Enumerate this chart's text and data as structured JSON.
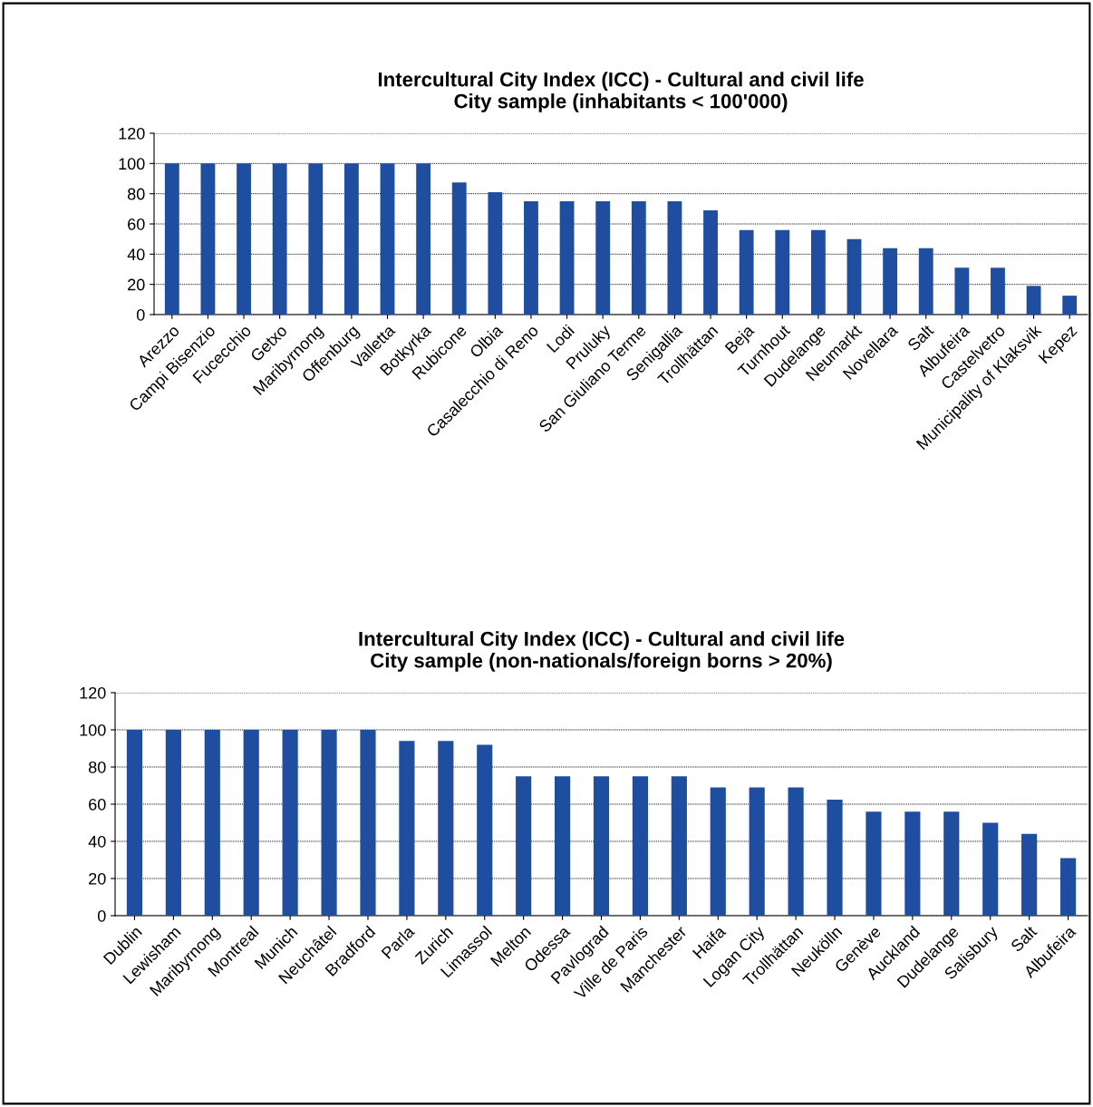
{
  "chart_data": [
    {
      "type": "bar",
      "title": "Intercultural City Index (ICC) - Cultural and civil life\nCity sample (inhabitants < 100'000)",
      "categories": [
        "Arezzo",
        "Campi Bisenzio",
        "Fucecchio",
        "Getxo",
        "Maribyrnong",
        "Offenburg",
        "Valletta",
        "Botkyrka",
        "Rubicone",
        "Olbia",
        "Casalecchio di Reno",
        "Lodi",
        "Pruluky",
        "San Giuliano Terme",
        "Senigallia",
        "Trollhättan",
        "Beja",
        "Turnhout",
        "Dudelange",
        "Neumarkt",
        "Novellara",
        "Salt",
        "Albufeira",
        "Castelvetro",
        "Municipality of Klaksvik",
        "Kepez"
      ],
      "values": [
        100,
        100,
        100,
        100,
        100,
        100,
        100,
        100,
        87.5,
        81,
        75,
        75,
        75,
        75,
        75,
        69,
        56,
        56,
        56,
        50,
        44,
        44,
        31,
        31,
        19,
        12.5
      ],
      "color": "#1f4ea0",
      "ylim": [
        0,
        120
      ],
      "yticks": [
        0,
        20,
        40,
        60,
        80,
        100,
        120
      ],
      "grid": "y",
      "legend": false
    },
    {
      "type": "bar",
      "title": "Intercultural City Index (ICC) - Cultural and civil life\nCity sample (non-nationals/foreign borns > 20%)",
      "categories": [
        "Dublin",
        "Lewisham",
        "Maribyrnong",
        "Montreal",
        "Munich",
        "Neuchâtel",
        "Bradford",
        "Parla",
        "Zurich",
        "Limassol",
        "Melton",
        "Odessa",
        "Pavlograd",
        "Ville de Paris",
        "Manchester",
        "Haifa",
        "Logan City",
        "Trollhättan",
        "Neukölln",
        "Genève",
        "Auckland",
        "Dudelange",
        "Salisbury",
        "Salt",
        "Albufeira"
      ],
      "values": [
        100,
        100,
        100,
        100,
        100,
        100,
        100,
        94,
        94,
        92,
        75,
        75,
        75,
        75,
        75,
        69,
        69,
        69,
        62.5,
        56,
        56,
        56,
        50,
        44,
        31
      ],
      "color": "#1f4ea0",
      "ylim": [
        0,
        120
      ],
      "yticks": [
        0,
        20,
        40,
        60,
        80,
        100,
        120
      ],
      "grid": "y",
      "legend": false
    }
  ]
}
